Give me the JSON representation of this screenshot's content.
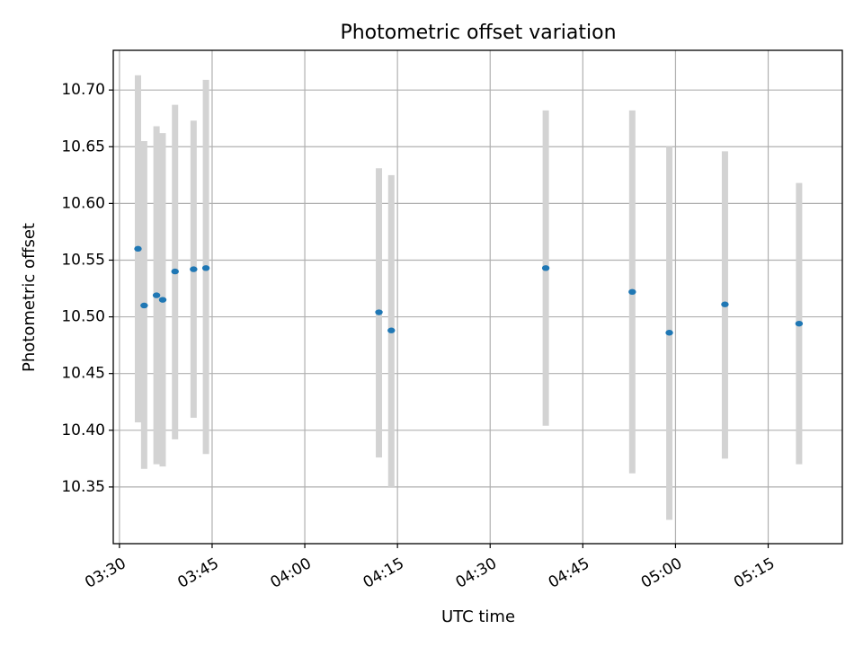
{
  "chart_data": {
    "type": "scatter",
    "title": "Photometric offset variation",
    "xlabel": "UTC time",
    "ylabel": "Photometric offset",
    "x_ticks": [
      "03:30",
      "03:45",
      "04:00",
      "04:15",
      "04:30",
      "04:45",
      "05:00",
      "05:15"
    ],
    "y_ticks": [
      "10.35",
      "10.40",
      "10.45",
      "10.50",
      "10.55",
      "10.60",
      "10.65",
      "10.70"
    ],
    "xlim": [
      "03:29",
      "05:27"
    ],
    "ylim": [
      10.3,
      10.735
    ],
    "grid": true,
    "series": [
      {
        "marker_color": "#1f77b4",
        "errorbar_color": "#d3d3d3",
        "points": [
          {
            "x": "03:33",
            "y": 10.56,
            "ylow": 10.407,
            "yhigh": 10.713
          },
          {
            "x": "03:34",
            "y": 10.51,
            "ylow": 10.366,
            "yhigh": 10.655
          },
          {
            "x": "03:36",
            "y": 10.519,
            "ylow": 10.37,
            "yhigh": 10.668
          },
          {
            "x": "03:37",
            "y": 10.515,
            "ylow": 10.368,
            "yhigh": 10.662
          },
          {
            "x": "03:39",
            "y": 10.54,
            "ylow": 10.392,
            "yhigh": 10.687
          },
          {
            "x": "03:42",
            "y": 10.542,
            "ylow": 10.411,
            "yhigh": 10.673
          },
          {
            "x": "03:44",
            "y": 10.543,
            "ylow": 10.379,
            "yhigh": 10.709
          },
          {
            "x": "04:12",
            "y": 10.504,
            "ylow": 10.376,
            "yhigh": 10.631
          },
          {
            "x": "04:14",
            "y": 10.488,
            "ylow": 10.35,
            "yhigh": 10.625
          },
          {
            "x": "04:39",
            "y": 10.543,
            "ylow": 10.404,
            "yhigh": 10.682
          },
          {
            "x": "04:53",
            "y": 10.522,
            "ylow": 10.362,
            "yhigh": 10.682
          },
          {
            "x": "04:59",
            "y": 10.486,
            "ylow": 10.321,
            "yhigh": 10.65
          },
          {
            "x": "05:08",
            "y": 10.511,
            "ylow": 10.375,
            "yhigh": 10.646
          },
          {
            "x": "05:20",
            "y": 10.494,
            "ylow": 10.37,
            "yhigh": 10.618
          }
        ]
      }
    ]
  }
}
